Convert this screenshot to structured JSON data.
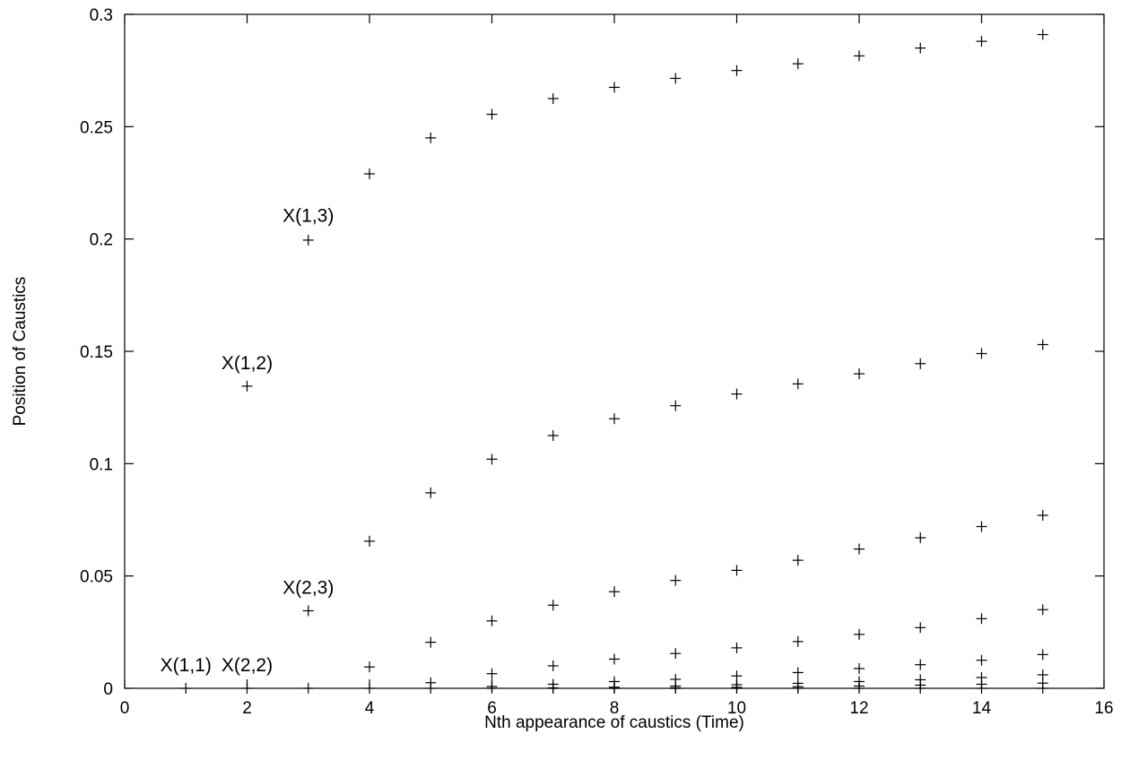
{
  "chart_data": {
    "type": "scatter",
    "title": "",
    "xlabel": "Nth appearance of caustics (Time)",
    "ylabel": "Position of Caustics",
    "xlim": [
      0,
      16
    ],
    "ylim": [
      0,
      0.3
    ],
    "xticks": [
      "0",
      "2",
      "4",
      "6",
      "8",
      "10",
      "12",
      "14",
      "16"
    ],
    "yticks": [
      "0",
      "0.05",
      "0.1",
      "0.15",
      "0.2",
      "0.25",
      "0.3"
    ],
    "grid": false,
    "marker": "+",
    "annotations": [
      {
        "text": "X(1,3)",
        "x": 3,
        "y": 0.2
      },
      {
        "text": "X(1,2)",
        "x": 2,
        "y": 0.1345
      },
      {
        "text": "X(2,3)",
        "x": 3,
        "y": 0.0345
      },
      {
        "text": "X(1,1)",
        "x": 1,
        "y": 0
      },
      {
        "text": "X(2,2)",
        "x": 2,
        "y": 0
      }
    ],
    "series": [
      {
        "x": [
          3,
          4,
          5,
          6,
          7,
          8,
          9,
          10,
          11,
          12,
          13,
          14,
          15
        ],
        "y": [
          0.1995,
          0.229,
          0.245,
          0.2555,
          0.2625,
          0.2675,
          0.2715,
          0.275,
          0.278,
          0.2815,
          0.285,
          0.288,
          0.291
        ]
      },
      {
        "x": [
          2,
          3,
          4,
          5,
          6,
          7,
          8,
          9,
          10,
          11,
          12,
          13,
          14,
          15
        ],
        "y": [
          0.1345,
          0.0345,
          0.0655,
          0.087,
          0.102,
          0.1125,
          0.12,
          0.1258,
          0.131,
          0.1355,
          0.14,
          0.1445,
          0.149,
          0.153
        ]
      },
      {
        "x": [
          4,
          5,
          6,
          7,
          8,
          9,
          10,
          11,
          12,
          13,
          14,
          15
        ],
        "y": [
          0.0095,
          0.0205,
          0.03,
          0.037,
          0.043,
          0.048,
          0.0525,
          0.057,
          0.062,
          0.067,
          0.072,
          0.077
        ]
      },
      {
        "x": [
          5,
          6,
          7,
          8,
          9,
          10,
          11,
          12,
          13,
          14,
          15
        ],
        "y": [
          0.0025,
          0.0065,
          0.01,
          0.013,
          0.0155,
          0.018,
          0.0208,
          0.024,
          0.027,
          0.031,
          0.035
        ]
      },
      {
        "x": [
          6,
          7,
          8,
          9,
          10,
          11,
          12,
          13,
          14,
          15
        ],
        "y": [
          0.0008,
          0.0018,
          0.003,
          0.004,
          0.0055,
          0.007,
          0.0088,
          0.0105,
          0.0125,
          0.015
        ]
      },
      {
        "x": [
          7,
          8,
          9,
          10,
          11,
          12,
          13,
          14,
          15
        ],
        "y": [
          0.0002,
          0.0005,
          0.001,
          0.0016,
          0.0022,
          0.003,
          0.0038,
          0.0048,
          0.006
        ]
      },
      {
        "x": [
          8,
          9,
          10,
          11,
          12,
          13,
          14,
          15
        ],
        "y": [
          0.0,
          0.0002,
          0.0004,
          0.0007,
          0.001,
          0.0014,
          0.0018,
          0.0023
        ]
      },
      {
        "x": [
          1,
          2,
          3,
          4,
          5,
          6,
          7,
          8,
          9,
          10,
          11,
          12,
          13,
          14,
          15
        ],
        "y": [
          0,
          0,
          0,
          0,
          0,
          0,
          0,
          0,
          0,
          0,
          0,
          0,
          0,
          0,
          0
        ]
      }
    ]
  }
}
